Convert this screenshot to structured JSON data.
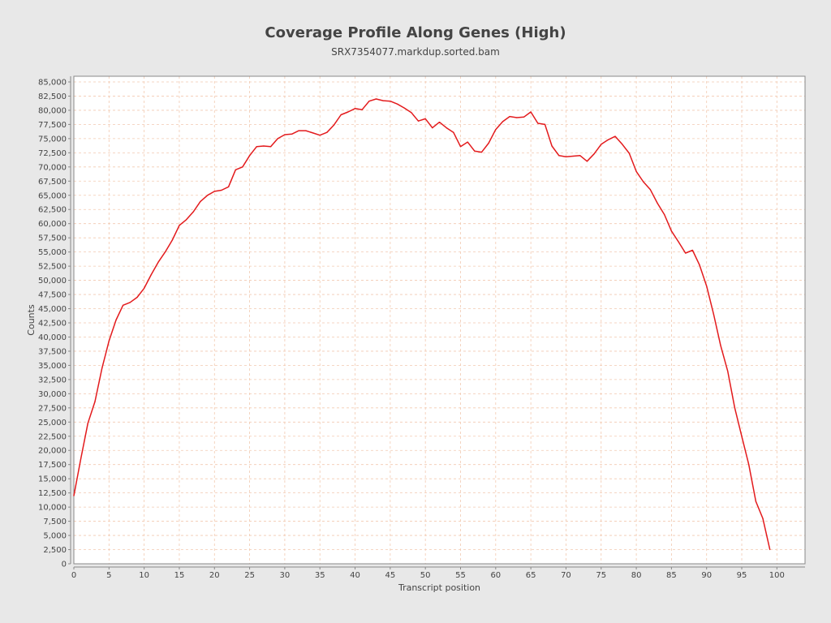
{
  "chart_data": {
    "type": "line",
    "title": "Coverage Profile Along Genes (High)",
    "subtitle": "SRX7354077.markdup.sorted.bam",
    "xlabel": "Transcript position",
    "ylabel": "Counts",
    "xlim": [
      0,
      104
    ],
    "ylim": [
      0,
      86000
    ],
    "xticks": [
      0,
      5,
      10,
      15,
      20,
      25,
      30,
      35,
      40,
      45,
      50,
      55,
      60,
      65,
      70,
      75,
      80,
      85,
      90,
      95,
      100
    ],
    "yticks": [
      0,
      2500,
      5000,
      7500,
      10000,
      12500,
      15000,
      17500,
      20000,
      22500,
      25000,
      27500,
      30000,
      32500,
      35000,
      37500,
      40000,
      42500,
      45000,
      47500,
      50000,
      52500,
      55000,
      57500,
      60000,
      62500,
      65000,
      67500,
      70000,
      72500,
      75000,
      77500,
      80000,
      82500,
      85000
    ],
    "ytick_labels": [
      "0",
      "2,500",
      "5,000",
      "7,500",
      "10,000",
      "12,500",
      "15,000",
      "17,500",
      "20,000",
      "22,500",
      "25,000",
      "27,500",
      "30,000",
      "32,500",
      "35,000",
      "37,500",
      "40,000",
      "42,500",
      "45,000",
      "47,500",
      "50,000",
      "52,500",
      "55,000",
      "57,500",
      "60,000",
      "62,500",
      "65,000",
      "67,500",
      "70,000",
      "72,500",
      "75,000",
      "77,500",
      "80,000",
      "82,500",
      "85,000"
    ],
    "grid": true,
    "colors": {
      "line": "#e31a1c",
      "grid": "#f2c9b0",
      "plot_background": "#ffffff",
      "page_background": "#e8e8e8",
      "axis": "#888888",
      "text": "#444444"
    },
    "series": [
      {
        "x": [
          0,
          1,
          2,
          3,
          4,
          5,
          6,
          7,
          8,
          9,
          10,
          11,
          12,
          13,
          14,
          15,
          16,
          17,
          18,
          19,
          20,
          21,
          22,
          23,
          24,
          25,
          26,
          27,
          28,
          29,
          30,
          31,
          32,
          33,
          34,
          35,
          36,
          37,
          38,
          39,
          40,
          41,
          42,
          43,
          44,
          45,
          46,
          47,
          48,
          49,
          50,
          51,
          52,
          53,
          54,
          55,
          56,
          57,
          58,
          59,
          60,
          61,
          62,
          63,
          64,
          65,
          66,
          67,
          68,
          69,
          70,
          71,
          72,
          73,
          74,
          75,
          76,
          77,
          78,
          79,
          80,
          81,
          82,
          83,
          84,
          85,
          86,
          87,
          88,
          89,
          90,
          91,
          92,
          93,
          94,
          95,
          96,
          97,
          98,
          99
        ],
        "y": [
          12000,
          18600,
          24800,
          28600,
          34500,
          39300,
          43000,
          45600,
          46100,
          47000,
          48600,
          51000,
          53200,
          55000,
          57100,
          59700,
          60700,
          62100,
          63900,
          65000,
          65700,
          65900,
          66500,
          69500,
          70000,
          72000,
          73600,
          73700,
          73600,
          75000,
          75700,
          75800,
          76400,
          76400,
          76000,
          75600,
          76100,
          77400,
          79200,
          79700,
          80300,
          80100,
          81600,
          82000,
          81700,
          81600,
          81100,
          80400,
          79600,
          78100,
          78500,
          76900,
          77900,
          76900,
          76100,
          73600,
          74400,
          72800,
          72600,
          74200,
          76600,
          78000,
          78900,
          78700,
          78800,
          79700,
          77700,
          77500,
          73700,
          72000,
          71800,
          71900,
          72000,
          71000,
          72300,
          74000,
          74800,
          75400,
          74000,
          72400,
          69200,
          67400,
          66000,
          63600,
          61600,
          58700,
          56800,
          54800,
          55300,
          52700,
          49000,
          44000,
          38500,
          34000,
          27500,
          22500,
          17500,
          11000,
          8000,
          2500
        ]
      }
    ]
  }
}
